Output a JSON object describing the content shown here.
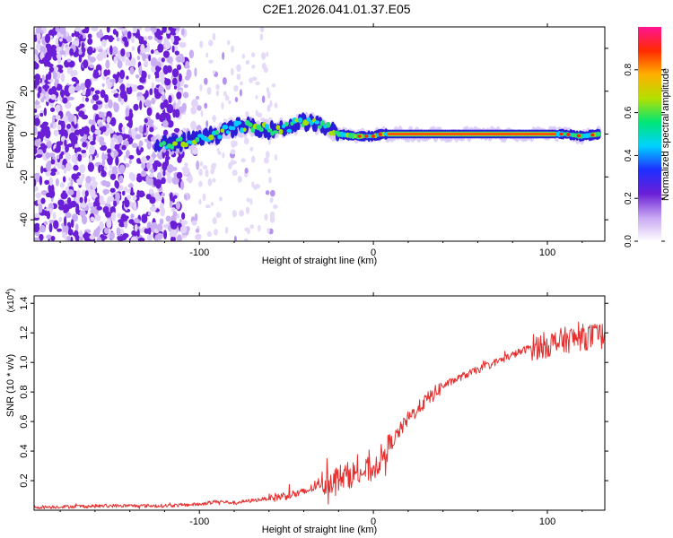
{
  "title": "C2E1.2026.041.01.37.E05",
  "chart_data": [
    {
      "type": "heatmap",
      "title": "C2E1.2026.041.01.37.E05",
      "xlabel": "Height of straight line (km)",
      "ylabel": "Frequency (Hz)",
      "xlim": [
        -195,
        133
      ],
      "ylim": [
        -50,
        50
      ],
      "x_ticks": [
        -100,
        0,
        100
      ],
      "x_tick_labels": [
        "-100",
        "0",
        "100"
      ],
      "y_ticks": [
        -40,
        -20,
        0,
        20,
        40
      ],
      "y_tick_labels": [
        "-40",
        "-20",
        "0",
        "20",
        "40"
      ],
      "ridge": {
        "description": "coherent echo ridge near 0 Hz",
        "x": [
          -125,
          -110,
          -100,
          -90,
          -80,
          -70,
          -60,
          -50,
          -40,
          -30,
          -20,
          -10,
          0,
          5,
          10,
          50,
          100,
          110,
          120,
          130
        ],
        "y": [
          -5,
          -4,
          -2,
          0,
          3,
          4,
          2,
          3,
          6,
          4,
          0,
          -1,
          -1,
          0,
          0,
          0,
          0,
          0,
          -1,
          0
        ]
      },
      "colorbar": {
        "label": "Normalized spectral amplitude",
        "range": [
          0,
          1
        ],
        "ticks": [
          0,
          0.2,
          0.4,
          0.6,
          0.8
        ],
        "tick_labels": [
          "0.0",
          "0.2",
          "0.4",
          "0.6",
          "0.8"
        ],
        "colors": [
          "#ffffff",
          "#c7a6f2",
          "#6a1fd6",
          "#1e2fff",
          "#00d2ff",
          "#00e676",
          "#b4e000",
          "#ffb000",
          "#ff2a00",
          "#ff1493"
        ]
      }
    },
    {
      "type": "line",
      "title": "",
      "xlabel": "Height of straight line (km)",
      "ylabel": "SNR (10 * v/v)",
      "scale_note": "(x10",
      "scale_exp": "4",
      "scale_close": ")",
      "xlim": [
        -195,
        133
      ],
      "ylim": [
        0,
        1.45
      ],
      "x_ticks": [
        -100,
        0,
        100
      ],
      "x_tick_labels": [
        "-100",
        "0",
        "100"
      ],
      "y_ticks": [
        0.2,
        0.4,
        0.6,
        0.8,
        1.0,
        1.2,
        1.4
      ],
      "y_tick_labels": [
        "0.2",
        "0.4",
        "0.6",
        "0.8",
        "1.0",
        "1.2",
        "1.4"
      ],
      "color": "#e53030",
      "series": [
        {
          "name": "SNR",
          "x": [
            -195,
            -150,
            -120,
            -100,
            -90,
            -80,
            -60,
            -40,
            -30,
            -20,
            -10,
            0,
            10,
            20,
            30,
            40,
            50,
            60,
            70,
            80,
            90,
            100,
            110,
            120,
            133
          ],
          "y": [
            0.02,
            0.03,
            0.03,
            0.04,
            0.06,
            0.05,
            0.08,
            0.12,
            0.18,
            0.22,
            0.25,
            0.28,
            0.45,
            0.62,
            0.74,
            0.84,
            0.9,
            0.95,
            1.0,
            1.05,
            1.1,
            1.12,
            1.15,
            1.17,
            1.18
          ]
        }
      ]
    }
  ]
}
